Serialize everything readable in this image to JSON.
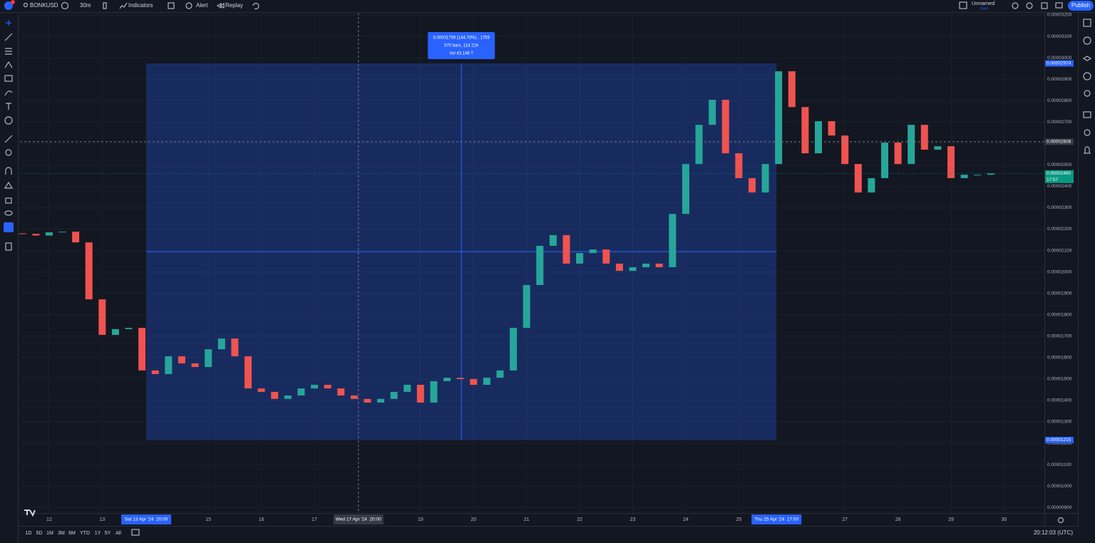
{
  "toolbar": {
    "symbol": "BONKUSD",
    "interval": "30m",
    "indicators": "Indicators",
    "alert": "Alert",
    "replay": "Replay",
    "layout_name": "Unnamed",
    "save": "Save",
    "publish": "Publish"
  },
  "chart_data": {
    "type": "candlestick",
    "x": [
      11.5,
      11.75,
      12,
      12.25,
      12.5,
      12.75,
      13,
      13.25,
      13.5,
      13.75,
      14,
      14.25,
      14.5,
      14.75,
      15,
      15.25,
      15.5,
      15.75,
      16,
      16.25,
      16.5,
      16.75,
      17,
      17.25,
      17.5,
      17.75,
      18,
      18.25,
      18.5,
      18.75,
      19,
      19.25,
      19.5,
      19.75,
      20,
      20.25,
      20.5,
      20.75,
      21,
      21.25,
      21.5,
      21.75,
      22,
      22.25,
      22.5,
      22.75,
      23,
      23.25,
      23.5,
      23.75,
      24,
      24.25,
      24.5,
      24.75,
      25,
      25.25,
      25.5,
      25.75,
      26,
      26.25,
      26.5,
      26.75,
      27,
      27.25,
      27.5,
      27.75,
      28,
      28.25,
      28.5,
      28.75,
      29,
      29.25,
      29.5,
      29.75
    ],
    "open": [
      2.18e-05,
      2.178e-05,
      2.17e-05,
      2.185e-05,
      2.188e-05,
      2.138e-05,
      1.872e-05,
      1.706e-05,
      1.733e-05,
      1.739e-05,
      1.54e-05,
      1.523e-05,
      1.606e-05,
      1.573e-05,
      1.556e-05,
      1.639e-05,
      1.689e-05,
      1.606e-05,
      1.456e-05,
      1.44e-05,
      1.407e-05,
      1.423e-05,
      1.456e-05,
      1.473e-05,
      1.456e-05,
      1.423e-05,
      1.407e-05,
      1.39e-05,
      1.407e-05,
      1.44e-05,
      1.473e-05,
      1.39e-05,
      1.49e-05,
      1.506e-05,
      1.5e-05,
      1.473e-05,
      1.506e-05,
      1.54e-05,
      1.739e-05,
      1.939e-05,
      2.122e-05,
      2.172e-05,
      2.039e-05,
      2.088e-05,
      2.105e-05,
      2.039e-05,
      2.005e-05,
      2.022e-05,
      2.039e-05,
      2.022e-05,
      2.271e-05,
      2.504e-05,
      2.687e-05,
      2.804e-05,
      2.554e-05,
      2.438e-05,
      2.371e-05,
      2.504e-05,
      2.937e-05,
      2.77e-05,
      2.554e-05,
      2.704e-05,
      2.637e-05,
      2.504e-05,
      2.371e-05,
      2.438e-05,
      2.604e-05,
      2.504e-05,
      2.687e-05,
      2.571e-05,
      2.587e-05,
      2.438e-05,
      2.454e-05,
      2.454e-05
    ],
    "close": [
      2.178e-05,
      2.17e-05,
      2.185e-05,
      2.188e-05,
      2.138e-05,
      1.872e-05,
      1.706e-05,
      1.733e-05,
      1.739e-05,
      1.54e-05,
      1.523e-05,
      1.606e-05,
      1.573e-05,
      1.556e-05,
      1.639e-05,
      1.689e-05,
      1.606e-05,
      1.456e-05,
      1.44e-05,
      1.407e-05,
      1.423e-05,
      1.456e-05,
      1.473e-05,
      1.456e-05,
      1.423e-05,
      1.407e-05,
      1.39e-05,
      1.407e-05,
      1.44e-05,
      1.473e-05,
      1.39e-05,
      1.49e-05,
      1.506e-05,
      1.5e-05,
      1.473e-05,
      1.506e-05,
      1.54e-05,
      1.739e-05,
      1.939e-05,
      2.122e-05,
      2.172e-05,
      2.039e-05,
      2.088e-05,
      2.105e-05,
      2.039e-05,
      2.005e-05,
      2.022e-05,
      2.039e-05,
      2.022e-05,
      2.271e-05,
      2.504e-05,
      2.687e-05,
      2.804e-05,
      2.554e-05,
      2.438e-05,
      2.371e-05,
      2.504e-05,
      2.937e-05,
      2.77e-05,
      2.554e-05,
      2.704e-05,
      2.637e-05,
      2.504e-05,
      2.371e-05,
      2.438e-05,
      2.604e-05,
      2.504e-05,
      2.687e-05,
      2.571e-05,
      2.587e-05,
      2.438e-05,
      2.454e-05,
      2.454e-05,
      2.46e-05
    ],
    "up_color": "#26a69a",
    "down_color": "#ef5350",
    "xlim": [
      11.45,
      30.76
    ],
    "ylim": [
      8.74e-06,
      3.21e-05
    ],
    "xticks": [
      12,
      13,
      15,
      16,
      17,
      19,
      20,
      21,
      22,
      23,
      24,
      25,
      27,
      28,
      29,
      30
    ],
    "yticks": [
      {
        "value": 9e-06,
        "label": "0.00000900"
      },
      {
        "value": 1e-05,
        "label": "0.00001000"
      },
      {
        "value": 1.1e-05,
        "label": "0.00001100"
      },
      {
        "value": 1.2e-05,
        "label": "0.00001200"
      },
      {
        "value": 1.3e-05,
        "label": "0.00001300"
      },
      {
        "value": 1.4e-05,
        "label": "0.00001400"
      },
      {
        "value": 1.5e-05,
        "label": "0.00001500"
      },
      {
        "value": 1.6e-05,
        "label": "0.00001600"
      },
      {
        "value": 1.7e-05,
        "label": "0.00001700"
      },
      {
        "value": 1.8e-05,
        "label": "0.00001800"
      },
      {
        "value": 1.9e-05,
        "label": "0.00001900"
      },
      {
        "value": 2e-05,
        "label": "0.00002000"
      },
      {
        "value": 2.1e-05,
        "label": "0.00002100"
      },
      {
        "value": 2.2e-05,
        "label": "0.00002200"
      },
      {
        "value": 2.3e-05,
        "label": "0.00002300"
      },
      {
        "value": 2.4e-05,
        "label": "0.00002400"
      },
      {
        "value": 2.5e-05,
        "label": "0.00002500"
      },
      {
        "value": 2.6e-05,
        "label": "0.00002600"
      },
      {
        "value": 2.7e-05,
        "label": "0.00002700"
      },
      {
        "value": 2.8e-05,
        "label": "0.00002800"
      },
      {
        "value": 2.9e-05,
        "label": "0.00002900"
      },
      {
        "value": 3e-05,
        "label": "0.00003000"
      },
      {
        "value": 3.1e-05,
        "label": "0.00003100"
      },
      {
        "value": 3.2e-05,
        "label": "0.00003200"
      }
    ],
    "grid": true,
    "price_markers": [
      {
        "value": 2.974e-05,
        "label": "0.00002974",
        "color": "#2962ff"
      },
      {
        "value": 1.215e-05,
        "label": "0.00001215",
        "color": "#2962ff"
      },
      {
        "value": 2.608e-05,
        "label": "0.00002608",
        "color": "#363a45"
      },
      {
        "value": 2.46e-05,
        "label": "0.00002460",
        "countdown": "17:57",
        "color": "#089981"
      }
    ],
    "time_markers": [
      {
        "value": 13.83,
        "label": "Sat 13 Apr '24  20:00",
        "color": "#2962ff"
      },
      {
        "value": 17.83,
        "label": "Wed 17 Apr '24  20:00",
        "color": "#363a45"
      },
      {
        "value": 25.71,
        "label": "Thu 25 Apr '24  17:00",
        "color": "#2962ff"
      }
    ],
    "measure_lines": [
      "0.00001759 (144.70%) , 1759",
      "570 bars, 11d 21h",
      "Vol 43.146 T"
    ]
  },
  "bottom_bar": {
    "ranges": [
      "1D",
      "5D",
      "1M",
      "3M",
      "6M",
      "YTD",
      "1Y",
      "5Y",
      "All"
    ],
    "clock": "20:12:03 (UTC)"
  }
}
